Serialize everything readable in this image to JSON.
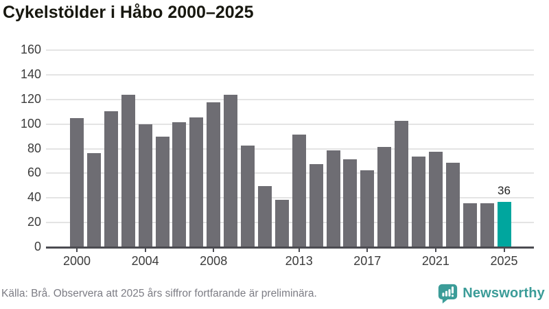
{
  "title": "Cykelstölder i Håbo 2000–2025",
  "footer": {
    "source_note": "Källa: Brå. Observera att 2025 års siffror fortfarande är preliminära."
  },
  "branding": {
    "name": "Newsworthy",
    "icon": "newsworthy-speech-bubble-barchart-icon",
    "color": "#3b9c98"
  },
  "colors": {
    "bar": "#6e6d73",
    "highlight": "#00a69e",
    "grid": "#e4e4e4",
    "axis": "#4b4b51",
    "title_text": "#17170f",
    "tick_text": "#3b3b3b",
    "source_text": "#7c7c84"
  },
  "chart_data": {
    "type": "bar",
    "title": "Cykelstölder i Håbo 2000–2025",
    "categories": [
      2000,
      2001,
      2002,
      2003,
      2004,
      2005,
      2006,
      2007,
      2008,
      2009,
      2010,
      2011,
      2012,
      2013,
      2014,
      2015,
      2016,
      2017,
      2018,
      2019,
      2020,
      2021,
      2022,
      2023,
      2024,
      2025
    ],
    "values": [
      104,
      76,
      110,
      123,
      99,
      89,
      101,
      105,
      117,
      123,
      82,
      49,
      38,
      91,
      67,
      78,
      71,
      62,
      81,
      102,
      73,
      77,
      68,
      35,
      35,
      36
    ],
    "highlight": {
      "category": 2025,
      "index": 25,
      "label": "36"
    },
    "xlabel": "",
    "ylabel": "",
    "ylim": [
      0,
      160
    ],
    "ytick_step": 20,
    "ytick_labels": [
      "0",
      "20",
      "40",
      "60",
      "80",
      "100",
      "120",
      "140",
      "160"
    ],
    "xtick_labels": [
      "2000",
      "2004",
      "2008",
      "2013",
      "2017",
      "2021",
      "2025"
    ],
    "grid": true,
    "legend": false
  }
}
